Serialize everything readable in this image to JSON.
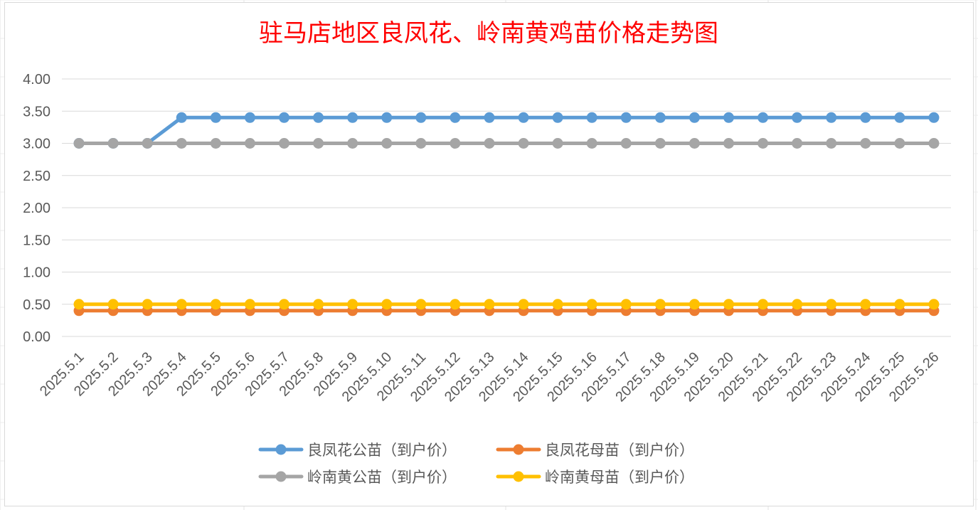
{
  "chart_data": {
    "type": "line",
    "title": "驻马店地区良凤花、岭南黄鸡苗价格走势图",
    "xlabel": "",
    "ylabel": "",
    "ylim": [
      0,
      4
    ],
    "yticks": [
      "0.00",
      "0.50",
      "1.00",
      "1.50",
      "2.00",
      "2.50",
      "3.00",
      "3.50",
      "4.00"
    ],
    "grid": true,
    "legend_position": "bottom",
    "categories": [
      "2025.5.1",
      "2025.5.2",
      "2025.5.3",
      "2025.5.4",
      "2025.5.5",
      "2025.5.6",
      "2025.5.7",
      "2025.5.8",
      "2025.5.9",
      "2025.5.10",
      "2025.5.11",
      "2025.5.12",
      "2025.5.13",
      "2025.5.14",
      "2025.5.15",
      "2025.5.16",
      "2025.5.17",
      "2025.5.18",
      "2025.5.19",
      "2025.5.20",
      "2025.5.21",
      "2025.5.22",
      "2025.5.23",
      "2025.5.24",
      "2025.5.25",
      "2025.5.26"
    ],
    "series": [
      {
        "name": "良凤花公苗（到户价）",
        "color": "#5b9bd5",
        "values": [
          3.0,
          3.0,
          3.0,
          3.4,
          3.4,
          3.4,
          3.4,
          3.4,
          3.4,
          3.4,
          3.4,
          3.4,
          3.4,
          3.4,
          3.4,
          3.4,
          3.4,
          3.4,
          3.4,
          3.4,
          3.4,
          3.4,
          3.4,
          3.4,
          3.4,
          3.4
        ]
      },
      {
        "name": "良凤花母苗（到户价）",
        "color": "#ed7d31",
        "values": [
          0.4,
          0.4,
          0.4,
          0.4,
          0.4,
          0.4,
          0.4,
          0.4,
          0.4,
          0.4,
          0.4,
          0.4,
          0.4,
          0.4,
          0.4,
          0.4,
          0.4,
          0.4,
          0.4,
          0.4,
          0.4,
          0.4,
          0.4,
          0.4,
          0.4,
          0.4
        ]
      },
      {
        "name": "岭南黄公苗（到户价）",
        "color": "#a5a5a5",
        "values": [
          3.0,
          3.0,
          3.0,
          3.0,
          3.0,
          3.0,
          3.0,
          3.0,
          3.0,
          3.0,
          3.0,
          3.0,
          3.0,
          3.0,
          3.0,
          3.0,
          3.0,
          3.0,
          3.0,
          3.0,
          3.0,
          3.0,
          3.0,
          3.0,
          3.0,
          3.0
        ]
      },
      {
        "name": "岭南黄母苗（到户价）",
        "color": "#ffc000",
        "values": [
          0.5,
          0.5,
          0.5,
          0.5,
          0.5,
          0.5,
          0.5,
          0.5,
          0.5,
          0.5,
          0.5,
          0.5,
          0.5,
          0.5,
          0.5,
          0.5,
          0.5,
          0.5,
          0.5,
          0.5,
          0.5,
          0.5,
          0.5,
          0.5,
          0.5,
          0.5
        ]
      }
    ],
    "draw_order": [
      0,
      2,
      1,
      3
    ]
  }
}
